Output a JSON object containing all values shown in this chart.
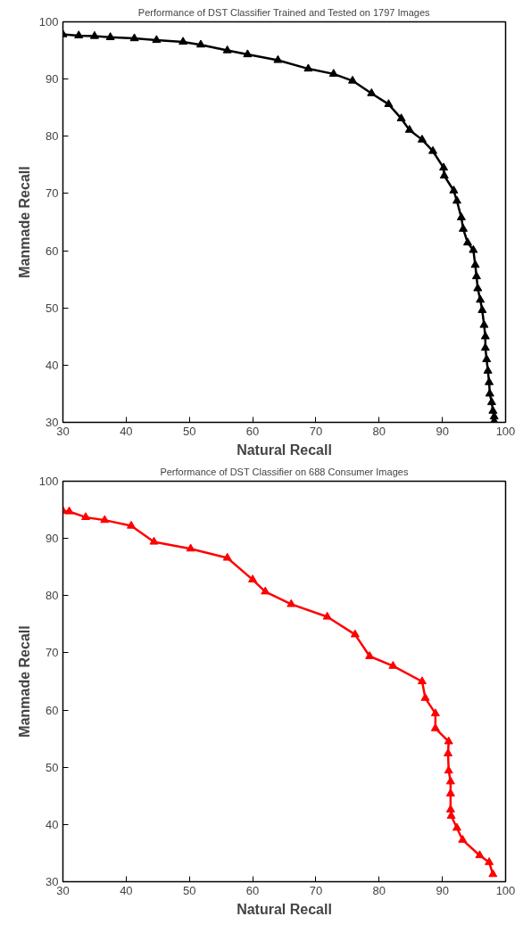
{
  "chart_data": [
    {
      "type": "line",
      "title": "Performance of DST Classifier Trained and Tested on 1797 Images",
      "xlabel": "Natural Recall",
      "ylabel": "Manmade Recall",
      "marker": "triangle",
      "line_style": "solid",
      "grid": false,
      "xlim": [
        30,
        100
      ],
      "ylim": [
        30,
        100
      ],
      "xticks": [
        30,
        40,
        50,
        60,
        70,
        80,
        90,
        100
      ],
      "yticks": [
        30,
        40,
        50,
        60,
        70,
        80,
        90,
        100
      ],
      "series": [
        {
          "color": "#000000",
          "x": [
            30,
            32.5,
            35,
            37.5,
            41.3,
            44.8,
            49,
            51.8,
            56,
            59.2,
            64,
            68.8,
            72.8,
            75.8,
            78.8,
            81.5,
            83.5,
            84.8,
            86.8,
            88.5,
            90.2,
            90.3,
            91.8,
            92.3,
            93,
            93.3,
            94,
            94.9,
            95.2,
            95.4,
            95.6,
            96,
            96.3,
            96.6,
            96.8,
            96.8,
            97,
            97.2,
            97.4,
            97.5,
            97.8,
            98,
            98.2,
            98.2
          ],
          "values": [
            97.8,
            97.6,
            97.5,
            97.3,
            97.1,
            96.8,
            96.5,
            96,
            95,
            94.3,
            93.3,
            91.8,
            90.9,
            89.7,
            87.5,
            85.6,
            83.1,
            81.1,
            79.4,
            77.4,
            74.5,
            73.1,
            70.5,
            68.7,
            65.8,
            63.8,
            61.4,
            60.1,
            57.5,
            55.5,
            53.4,
            51.4,
            49.6,
            47,
            45,
            43,
            41,
            39,
            37,
            35,
            33.5,
            32,
            31,
            30.2
          ]
        }
      ]
    },
    {
      "type": "line",
      "title": "Performance of DST Classifier on 688 Consumer Images",
      "xlabel": "Natural Recall",
      "ylabel": "Manmade Recall",
      "marker": "triangle",
      "line_style": "solid",
      "grid": false,
      "xlim": [
        30,
        100
      ],
      "ylim": [
        30,
        100
      ],
      "xticks": [
        30,
        40,
        50,
        60,
        70,
        80,
        90,
        100
      ],
      "yticks": [
        30,
        40,
        50,
        60,
        70,
        80,
        90,
        100
      ],
      "series": [
        {
          "color": "#ff0000",
          "x": [
            30,
            31,
            33.6,
            36.6,
            40.8,
            44.4,
            50.2,
            56,
            60,
            62,
            66.1,
            71.8,
            76.2,
            78.5,
            82.2,
            86.8,
            87.3,
            88.9,
            88.9,
            91,
            90.9,
            91,
            91.3,
            91.3,
            91.3,
            91.4,
            92.3,
            93.2,
            95.9,
            97.4,
            98
          ],
          "values": [
            94.8,
            94.7,
            93.7,
            93.2,
            92.2,
            89.4,
            88.2,
            86.6,
            82.8,
            80.7,
            78.5,
            76.3,
            73.2,
            69.4,
            67.7,
            65,
            62.1,
            59.4,
            56.8,
            54.5,
            52.4,
            49.4,
            47.5,
            45.4,
            42.6,
            41.5,
            39.4,
            37.3,
            34.6,
            33.4,
            31.3
          ]
        }
      ]
    }
  ]
}
